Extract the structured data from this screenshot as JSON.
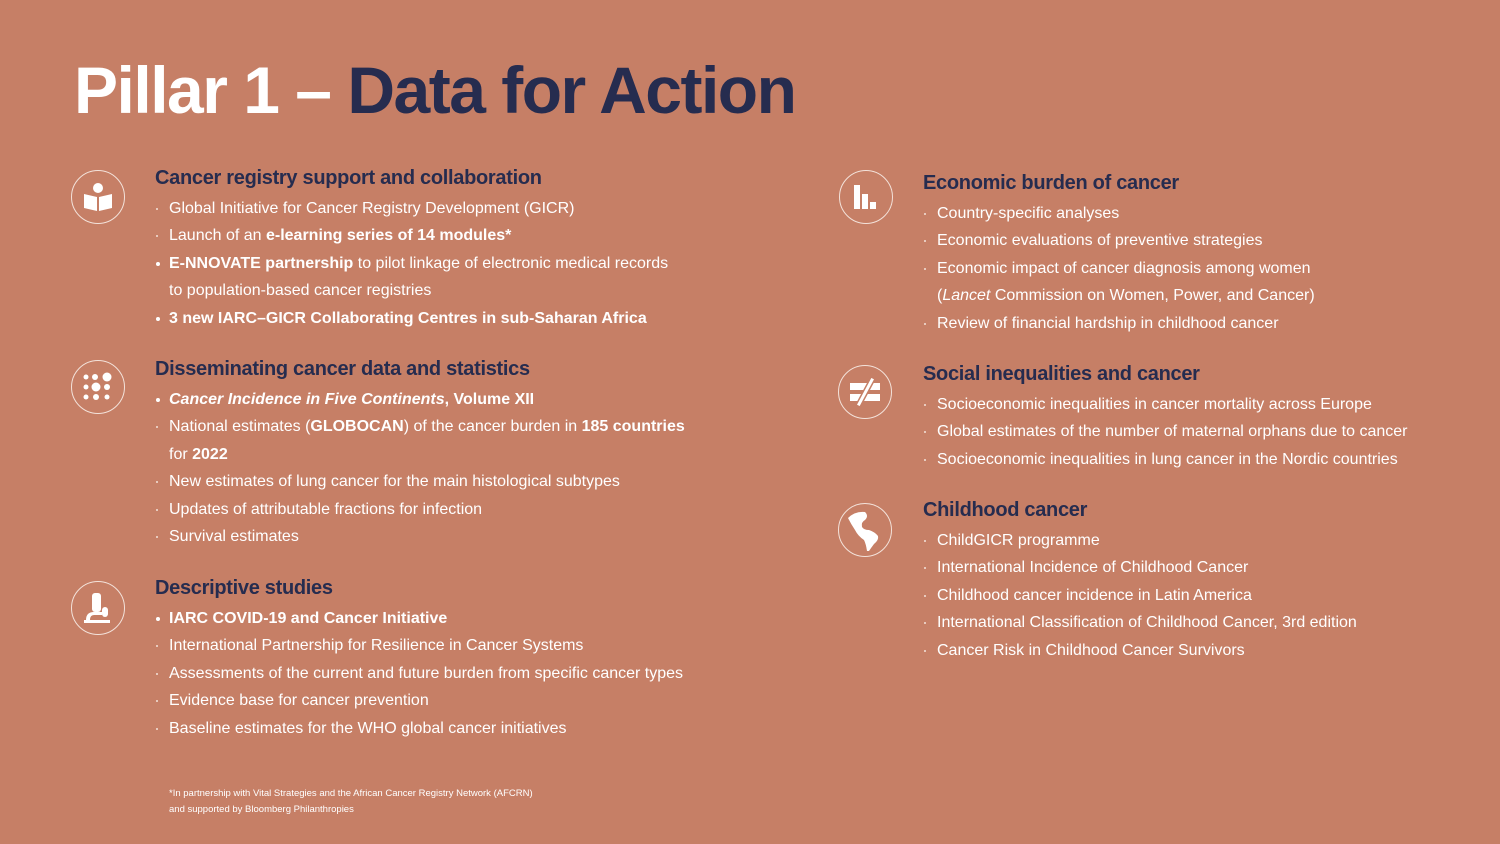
{
  "title": {
    "part1": "Pillar 1 – ",
    "part2": "Data for Action"
  },
  "colors": {
    "background": "#c67f66",
    "accent": "#262c4f",
    "text": "#ffffff"
  },
  "sections": [
    {
      "icon": "reader-book-icon",
      "heading": "Cancer registry support and collaboration",
      "items": [
        {
          "emphasis": false,
          "lines": [
            [
              {
                "t": "Global Initiative for Cancer Registry Development (GICR)"
              }
            ]
          ]
        },
        {
          "emphasis": false,
          "lines": [
            [
              {
                "t": "Launch of an "
              },
              {
                "t": "e-learning series of 14 modules*",
                "b": true
              }
            ]
          ]
        },
        {
          "emphasis": true,
          "lines": [
            [
              {
                "t": "E-NNOVATE partnership",
                "b": true
              },
              {
                "t": " to pilot linkage of electronic medical records"
              }
            ],
            [
              {
                "t": "to population-based cancer registries"
              }
            ]
          ]
        },
        {
          "emphasis": true,
          "lines": [
            [
              {
                "t": "3 new IARC–GICR Collaborating Centres in sub-Saharan Africa",
                "b": true
              }
            ]
          ]
        }
      ]
    },
    {
      "icon": "dot-grid-icon",
      "heading": "Disseminating cancer data and statistics",
      "items": [
        {
          "emphasis": true,
          "lines": [
            [
              {
                "t": "Cancer Incidence in Five Continents",
                "b": true,
                "i": true
              },
              {
                "t": ", Volume XII",
                "b": true
              }
            ]
          ]
        },
        {
          "emphasis": false,
          "lines": [
            [
              {
                "t": "National estimates ("
              },
              {
                "t": "GLOBOCAN",
                "b": true
              },
              {
                "t": ") of the cancer burden in "
              },
              {
                "t": "185 countries",
                "b": true
              }
            ],
            [
              {
                "t": "for "
              },
              {
                "t": "2022",
                "b": true
              }
            ]
          ]
        },
        {
          "emphasis": false,
          "lines": [
            [
              {
                "t": "New estimates of lung cancer for the main histological subtypes"
              }
            ]
          ]
        },
        {
          "emphasis": false,
          "lines": [
            [
              {
                "t": "Updates of attributable fractions for infection"
              }
            ]
          ]
        },
        {
          "emphasis": false,
          "lines": [
            [
              {
                "t": "Survival estimates"
              }
            ]
          ]
        }
      ]
    },
    {
      "icon": "microscope-icon",
      "heading": "Descriptive studies",
      "items": [
        {
          "emphasis": true,
          "lines": [
            [
              {
                "t": "IARC COVID-19 and Cancer Initiative",
                "b": true
              }
            ]
          ]
        },
        {
          "emphasis": false,
          "lines": [
            [
              {
                "t": "International Partnership for Resilience in Cancer Systems"
              }
            ]
          ]
        },
        {
          "emphasis": false,
          "lines": [
            [
              {
                "t": "Assessments of the current and future burden from specific cancer types"
              }
            ]
          ]
        },
        {
          "emphasis": false,
          "lines": [
            [
              {
                "t": "Evidence base for cancer prevention"
              }
            ]
          ]
        },
        {
          "emphasis": false,
          "lines": [
            [
              {
                "t": "Baseline estimates for the WHO global cancer initiatives"
              }
            ]
          ]
        }
      ]
    },
    {
      "icon": "bar-chart-icon",
      "heading": "Economic burden of cancer",
      "items": [
        {
          "emphasis": false,
          "lines": [
            [
              {
                "t": "Country-specific analyses"
              }
            ]
          ]
        },
        {
          "emphasis": false,
          "lines": [
            [
              {
                "t": "Economic evaluations of preventive strategies"
              }
            ]
          ]
        },
        {
          "emphasis": false,
          "lines": [
            [
              {
                "t": "Economic impact of cancer diagnosis among women"
              }
            ],
            [
              {
                "t": "("
              },
              {
                "t": "Lancet",
                "i": true
              },
              {
                "t": " Commission on Women, Power, and Cancer)"
              }
            ]
          ]
        },
        {
          "emphasis": false,
          "lines": [
            [
              {
                "t": "Review of financial hardship in childhood cancer"
              }
            ]
          ]
        }
      ]
    },
    {
      "icon": "not-equal-icon",
      "heading": "Social inequalities and cancer",
      "items": [
        {
          "emphasis": false,
          "lines": [
            [
              {
                "t": "Socioeconomic inequalities in cancer mortality across Europe"
              }
            ]
          ]
        },
        {
          "emphasis": false,
          "lines": [
            [
              {
                "t": "Global estimates of the number of maternal orphans due to cancer"
              }
            ]
          ]
        },
        {
          "emphasis": false,
          "lines": [
            [
              {
                "t": "Socioeconomic inequalities in lung cancer in the Nordic countries"
              }
            ]
          ]
        }
      ]
    },
    {
      "icon": "globe-americas-icon",
      "heading": "Childhood cancer",
      "items": [
        {
          "emphasis": false,
          "lines": [
            [
              {
                "t": "ChildGICR programme"
              }
            ]
          ]
        },
        {
          "emphasis": false,
          "lines": [
            [
              {
                "t": "International Incidence of Childhood Cancer"
              }
            ]
          ]
        },
        {
          "emphasis": false,
          "lines": [
            [
              {
                "t": "Childhood cancer incidence in Latin America"
              }
            ]
          ]
        },
        {
          "emphasis": false,
          "lines": [
            [
              {
                "t": "International Classification of Childhood Cancer, 3rd edition"
              }
            ]
          ]
        },
        {
          "emphasis": false,
          "lines": [
            [
              {
                "t": "Cancer Risk in Childhood Cancer Survivors"
              }
            ]
          ]
        }
      ]
    }
  ],
  "footnote": {
    "line1": "*In partnership with Vital Strategies and the African Cancer Registry Network (AFCRN)",
    "line2": "and supported by Bloomberg Philanthropies"
  }
}
